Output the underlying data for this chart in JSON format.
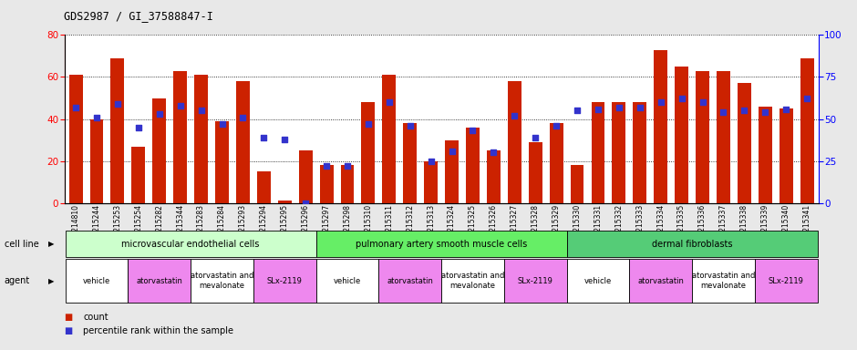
{
  "title": "GDS2987 / GI_37588847-I",
  "gsm_labels": [
    "GSM214810",
    "GSM215244",
    "GSM215253",
    "GSM215254",
    "GSM215282",
    "GSM215344",
    "GSM215283",
    "GSM215284",
    "GSM215293",
    "GSM215294",
    "GSM215295",
    "GSM215296",
    "GSM215297",
    "GSM215298",
    "GSM215310",
    "GSM215311",
    "GSM215312",
    "GSM215313",
    "GSM215324",
    "GSM215325",
    "GSM215326",
    "GSM215327",
    "GSM215328",
    "GSM215329",
    "GSM215330",
    "GSM215331",
    "GSM215332",
    "GSM215333",
    "GSM215334",
    "GSM215335",
    "GSM215336",
    "GSM215337",
    "GSM215338",
    "GSM215339",
    "GSM215340",
    "GSM215341"
  ],
  "counts": [
    61,
    40,
    69,
    27,
    50,
    63,
    61,
    39,
    58,
    15,
    1,
    25,
    18,
    18,
    48,
    61,
    38,
    20,
    30,
    36,
    25,
    58,
    29,
    38,
    18,
    48,
    48,
    48,
    73,
    65,
    63,
    63,
    57,
    46,
    45,
    69
  ],
  "percentile_ranks": [
    57,
    51,
    59,
    45,
    53,
    58,
    55,
    47,
    51,
    39,
    38,
    0,
    22,
    22,
    47,
    60,
    46,
    25,
    31,
    43,
    30,
    52,
    39,
    46,
    55,
    56,
    57,
    57,
    60,
    62,
    60,
    54,
    55,
    54,
    56,
    62
  ],
  "bar_color": "#cc2200",
  "dot_color": "#3333cc",
  "ylim_left": [
    0,
    80
  ],
  "ylim_right": [
    0,
    100
  ],
  "yticks_left": [
    0,
    20,
    40,
    60,
    80
  ],
  "yticks_right": [
    0,
    25,
    50,
    75,
    100
  ],
  "cell_line_groups": [
    {
      "label": "microvascular endothelial cells",
      "start": 0,
      "end": 11,
      "color": "#ccffcc"
    },
    {
      "label": "pulmonary artery smooth muscle cells",
      "start": 12,
      "end": 23,
      "color": "#66ee66"
    },
    {
      "label": "dermal fibroblasts",
      "start": 24,
      "end": 35,
      "color": "#55cc77"
    }
  ],
  "agent_groups": [
    {
      "label": "vehicle",
      "start": 0,
      "end": 2,
      "color": "#ffffff"
    },
    {
      "label": "atorvastatin",
      "start": 3,
      "end": 5,
      "color": "#ee88ee"
    },
    {
      "label": "atorvastatin and\nmevalonate",
      "start": 6,
      "end": 8,
      "color": "#ffffff"
    },
    {
      "label": "SLx-2119",
      "start": 9,
      "end": 11,
      "color": "#ee88ee"
    },
    {
      "label": "vehicle",
      "start": 12,
      "end": 14,
      "color": "#ffffff"
    },
    {
      "label": "atorvastatin",
      "start": 15,
      "end": 17,
      "color": "#ee88ee"
    },
    {
      "label": "atorvastatin and\nmevalonate",
      "start": 18,
      "end": 20,
      "color": "#ffffff"
    },
    {
      "label": "SLx-2119",
      "start": 21,
      "end": 23,
      "color": "#ee88ee"
    },
    {
      "label": "vehicle",
      "start": 24,
      "end": 26,
      "color": "#ffffff"
    },
    {
      "label": "atorvastatin",
      "start": 27,
      "end": 29,
      "color": "#ee88ee"
    },
    {
      "label": "atorvastatin and\nmevalonate",
      "start": 30,
      "end": 32,
      "color": "#ffffff"
    },
    {
      "label": "SLx-2119",
      "start": 33,
      "end": 35,
      "color": "#ee88ee"
    }
  ],
  "cell_line_label": "cell line",
  "agent_label": "agent",
  "legend_count_label": "count",
  "legend_percentile_label": "percentile rank within the sample",
  "bg_color": "#e8e8e8",
  "plot_bg_color": "#ffffff",
  "grid_color": "#000000"
}
